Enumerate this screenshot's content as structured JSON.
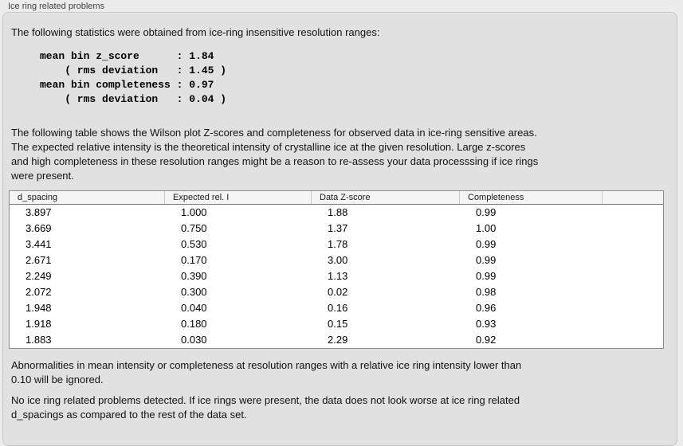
{
  "window": {
    "title": "Ice ring related problems"
  },
  "intro": {
    "text": "The following statistics were obtained from ice-ring insensitive resolution ranges:"
  },
  "stats_block": {
    "text": "mean bin z_score      : 1.84\n    ( rms deviation   : 1.45 )\nmean bin completeness : 0.97\n    ( rms deviation   : 0.04 )",
    "mean_bin_z_score": "1.84",
    "z_score_rms_deviation": "1.45",
    "mean_bin_completeness": "0.97",
    "completeness_rms_deviation": "0.04"
  },
  "table_intro": {
    "lines": [
      "The following table shows the Wilson plot Z-scores and completeness for observed data in ice-ring sensitive areas.",
      "The expected relative intensity is the theoretical intensity of crystalline ice at the given resolution. Large z-scores",
      "and high completeness in these resolution ranges might be a reason to re-assess your data processsing if ice rings",
      "were present."
    ]
  },
  "table": {
    "columns": [
      "d_spacing",
      "Expected rel. I",
      "Data Z-score",
      "Completeness"
    ],
    "rows": [
      [
        "3.897",
        "1.000",
        "1.88",
        "0.99"
      ],
      [
        "3.669",
        "0.750",
        "1.37",
        "1.00"
      ],
      [
        "3.441",
        "0.530",
        "1.78",
        "0.99"
      ],
      [
        "2.671",
        "0.170",
        "3.00",
        "0.99"
      ],
      [
        "2.249",
        "0.390",
        "1.13",
        "0.99"
      ],
      [
        "2.072",
        "0.300",
        "0.02",
        "0.98"
      ],
      [
        "1.948",
        "0.040",
        "0.16",
        "0.96"
      ],
      [
        "1.918",
        "0.180",
        "0.15",
        "0.93"
      ],
      [
        "1.883",
        "0.030",
        "2.29",
        "0.92"
      ]
    ]
  },
  "notes": {
    "ignore_lines": [
      "Abnormalities in mean intensity or completeness at resolution ranges with a relative ice ring intensity lower than",
      "0.10 will be ignored."
    ],
    "conclusion_lines": [
      "No ice ring related problems detected. If ice rings were present, the data does not look worse at ice ring related",
      "d_spacings as compared to the rest of the data set."
    ]
  },
  "colors": {
    "outer_background": "#ececec",
    "panel_background": "#e1e1e1",
    "panel_border": "#c6c6c6",
    "table_border": "#8b8b8b",
    "table_header_background": "#f5f5f5",
    "text": "#141414"
  }
}
